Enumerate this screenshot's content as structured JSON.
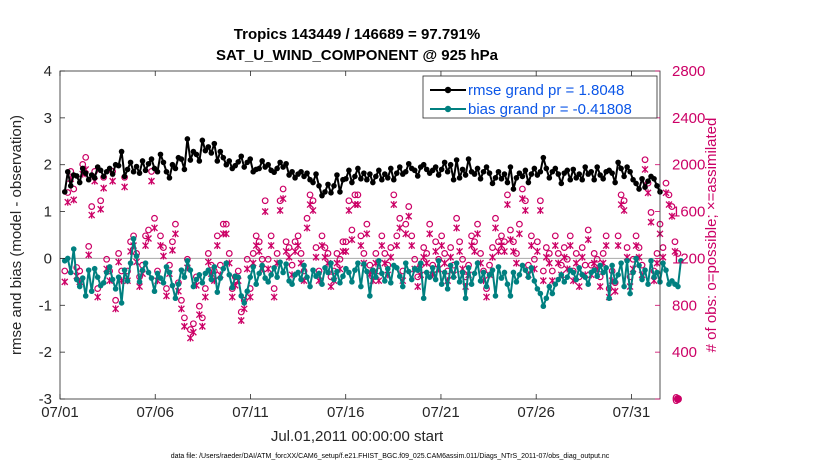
{
  "chart_data": {
    "type": "line",
    "title": "Tropics 143449 / 146689 = 97.791%",
    "subtitle": "SAT_U_WIND_COMPONENT @ 925 hPa",
    "xlabel": "Jul.01,2011 00:00:00 start",
    "ylabel": "rmse and bias (model - observation)",
    "y2label": "# of obs: o=possible; ×=assimilated",
    "footer": "data file: /Users/raeder/DAI/ATM_forcXX/CAM6_setup/f.e21.FHIST_BGC.f09_025.CAM6assim.011/Diags_NTrS_2011-07/obs_diag_output.nc",
    "x_ticks": [
      "07/01",
      "07/06",
      "07/11",
      "07/16",
      "07/21",
      "07/26",
      "07/31"
    ],
    "xlim": [
      0,
      31.5
    ],
    "ylim": [
      -3,
      4
    ],
    "y_ticks": [
      "-3",
      "-2",
      "-1",
      "0",
      "1",
      "2",
      "3",
      "4"
    ],
    "y2lim": [
      0,
      2800
    ],
    "y2_ticks": [
      "0",
      "400",
      "800",
      "1200",
      "1600",
      "2000",
      "2400",
      "2800"
    ],
    "legend": {
      "placement": "top-right",
      "entries": [
        "rmse grand pr = 1.8048",
        "bias grand pr = -0.41808"
      ]
    },
    "colors": {
      "rmse": "#000000",
      "bias": "#008080",
      "obs": "#cc0066",
      "zero_line": "#aaaaaa",
      "legend_text": "#0b56e8"
    },
    "series": [
      {
        "name": "rmse",
        "axis": "left",
        "values": [
          1.42,
          1.85,
          1.55,
          1.78,
          1.76,
          1.62,
          1.92,
          1.82,
          1.68,
          1.78,
          1.72,
          1.95,
          1.88,
          1.75,
          1.85,
          1.92,
          1.8,
          2.0,
          1.98,
          2.28,
          1.75,
          1.9,
          2.05,
          1.85,
          1.96,
          1.82,
          2.08,
          1.88,
          2.02,
          2.12,
          1.92,
          1.85,
          2.22,
          2.05,
          1.85,
          1.72,
          2.0,
          1.92,
          2.15,
          2.12,
          1.9,
          2.55,
          2.1,
          2.28,
          2.22,
          2.08,
          2.52,
          2.3,
          2.38,
          2.25,
          2.45,
          2.08,
          2.28,
          2.15,
          2.0,
          2.08,
          1.92,
          1.98,
          2.06,
          2.18,
          1.95,
          2.05,
          2.12,
          1.85,
          1.9,
          1.92,
          2.08,
          1.95,
          2.0,
          1.88,
          1.84,
          1.92,
          2.05,
          1.95,
          2.02,
          1.78,
          1.85,
          1.72,
          1.8,
          1.85,
          1.75,
          1.82,
          1.68,
          1.62,
          1.8,
          1.55,
          1.34,
          1.42,
          1.58,
          1.4,
          1.55,
          1.78,
          1.42,
          1.68,
          1.7,
          1.88,
          1.62,
          1.75,
          1.92,
          1.7,
          1.82,
          1.68,
          1.8,
          1.62,
          1.75,
          1.88,
          1.68,
          1.8,
          1.72,
          1.92,
          1.68,
          1.82,
          1.95,
          1.8,
          1.85,
          2.02,
          1.92,
          1.88,
          1.76,
          1.95,
          2.0,
          1.9,
          1.82,
          1.88,
          1.95,
          1.78,
          1.9,
          2.05,
          1.85,
          2.0,
          1.68,
          2.1,
          1.72,
          1.9,
          1.78,
          2.12,
          1.85,
          1.8,
          1.92,
          1.7,
          1.85,
          1.95,
          1.82,
          1.6,
          1.72,
          1.85,
          1.7,
          1.8,
          1.62,
          1.95,
          1.48,
          1.72,
          1.82,
          1.75,
          1.88,
          1.62,
          1.8,
          1.92,
          1.78,
          1.85,
          2.15,
          1.92,
          1.72,
          1.85,
          1.92,
          1.8,
          1.6,
          1.82,
          1.88,
          1.68,
          1.9,
          1.72,
          1.8,
          1.68,
          1.95,
          1.8,
          1.85,
          1.68,
          1.95,
          1.78,
          1.7,
          1.85,
          1.88,
          1.82,
          1.62,
          2.05,
          1.92,
          1.75,
          1.95,
          1.85,
          1.68,
          1.6,
          1.48,
          1.7,
          1.52,
          1.65,
          1.75,
          1.7,
          1.55,
          1.42
        ]
      },
      {
        "name": "bias",
        "axis": "left",
        "values": [
          -0.05,
          0.0,
          -0.3,
          0.2,
          -0.45,
          -0.6,
          -0.42,
          -0.8,
          -0.25,
          -0.7,
          -0.22,
          -0.4,
          -0.58,
          -0.52,
          -0.3,
          -0.18,
          -0.45,
          -0.65,
          -0.4,
          -0.95,
          -0.25,
          -0.48,
          -0.1,
          0.42,
          0.05,
          -0.5,
          -0.25,
          -0.1,
          -0.3,
          -0.42,
          -0.7,
          -0.32,
          -0.42,
          -0.52,
          -0.18,
          -0.3,
          -0.58,
          -0.85,
          -0.55,
          -0.25,
          -0.4,
          -0.05,
          -0.25,
          -0.6,
          -0.45,
          -0.35,
          -0.52,
          -0.32,
          -0.25,
          -0.45,
          -0.18,
          -0.72,
          -0.42,
          -0.22,
          -0.1,
          -0.35,
          -0.62,
          -0.38,
          -0.4,
          -0.8,
          -0.95,
          -0.7,
          -0.4,
          -0.18,
          -0.55,
          -0.32,
          -0.15,
          -0.42,
          -0.5,
          -0.35,
          -0.2,
          -0.4,
          -0.08,
          -0.3,
          -0.12,
          -0.48,
          -0.55,
          -0.35,
          -0.3,
          -0.45,
          -0.15,
          -0.4,
          -0.6,
          -0.25,
          -0.38,
          -0.32,
          -0.55,
          -0.2,
          -0.3,
          -0.1,
          -0.45,
          -0.28,
          -0.52,
          -0.38,
          -0.22,
          -0.3,
          -0.5,
          -0.25,
          -0.1,
          -0.6,
          -0.12,
          -0.28,
          -0.8,
          -0.25,
          -0.4,
          -0.05,
          -0.32,
          -0.48,
          -0.22,
          -0.52,
          -0.15,
          -0.2,
          -0.38,
          -0.6,
          -0.1,
          -0.28,
          -0.45,
          -0.22,
          -0.25,
          -0.1,
          -0.85,
          -0.3,
          -0.4,
          -0.2,
          -0.45,
          -0.05,
          -0.55,
          -0.3,
          -0.65,
          -0.15,
          -0.4,
          -0.1,
          -0.5,
          -0.3,
          -0.85,
          -0.2,
          -0.55,
          -0.32,
          -0.1,
          -0.48,
          -0.3,
          -0.6,
          -0.35,
          -0.25,
          -0.8,
          -0.18,
          -0.42,
          -0.3,
          -0.55,
          -0.8,
          -0.3,
          -0.5,
          -0.35,
          -0.15,
          -0.25,
          -0.4,
          -0.2,
          -0.48,
          -0.65,
          -0.75,
          -1.02,
          -0.85,
          -0.6,
          -0.75,
          -0.55,
          -0.45,
          -0.35,
          -0.5,
          -0.4,
          -0.25,
          -0.3,
          -0.45,
          -0.2,
          -0.35,
          -0.4,
          -0.55,
          -0.3,
          -0.25,
          -0.38,
          -0.15,
          -0.3,
          -0.2,
          -0.85,
          -0.15,
          -0.5,
          -0.35,
          -0.1,
          -0.6,
          -0.05,
          -0.75,
          -0.3,
          0.0,
          -0.15,
          -0.45,
          -0.25,
          -0.55,
          -0.05,
          -0.4,
          -0.3,
          -0.5,
          -0.1,
          -0.25,
          -0.55,
          -0.48,
          -0.55,
          -0.6,
          -0.05
        ]
      },
      {
        "name": "obs possible (o)",
        "axis": "right",
        "values": [
          1050,
          1720,
          1900,
          1750,
          1080,
          1050,
          1960,
          2020,
          1260,
          1600,
          1900,
          900,
          1650,
          1850,
          1150,
          1050,
          1900,
          800,
          1200,
          1050,
          1850,
          1050,
          1300,
          1350,
          1200,
          1000,
          1100,
          1350,
          1400,
          1900,
          1500,
          1050,
          1350,
          1250,
          900,
          1100,
          1300,
          1450,
          950,
          800,
          650,
          1150,
          550,
          600,
          1000,
          750,
          650,
          900,
          1200,
          1100,
          1050,
          1350,
          1100,
          1450,
          1450,
          1200,
          900,
          1000,
          1050,
          700,
          800,
          1150,
          900,
          1200,
          1350,
          1300,
          1150,
          1650,
          1150,
          1350,
          900,
          1200,
          1650,
          1750,
          1300,
          1250,
          1100,
          1300,
          1350,
          1200,
          1050,
          1500,
          1700,
          1650,
          1250,
          1050,
          1350,
          1250,
          1200,
          1000,
          1050,
          1200,
          1150,
          1300,
          1300,
          1650,
          1400,
          1700,
          1700,
          1350,
          1200,
          1450,
          1100,
          1050,
          1200,
          1050,
          1350,
          1200,
          1100,
          1250,
          1700,
          1350,
          1500,
          1050,
          1450,
          1600,
          1350,
          1150,
          1000,
          1100,
          1250,
          1200,
          1450,
          1100,
          1300,
          1150,
          1350,
          1200,
          1050,
          1250,
          1100,
          1500,
          1300,
          1150,
          1000,
          1100,
          1350,
          1300,
          1450,
          1200,
          1050,
          900,
          1100,
          1250,
          1500,
          1300,
          1350,
          1300,
          1700,
          1400,
          1300,
          1200,
          1450,
          1750,
          1650,
          1100,
          1350,
          1150,
          1300,
          1650,
          1050,
          1250,
          1200,
          1050,
          1350,
          1200,
          1100,
          1250,
          1150,
          1350,
          1050,
          1200,
          1000,
          1250,
          1100,
          1400,
          1100,
          1200,
          1150,
          1000,
          1200,
          1350,
          900,
          1050,
          950,
          1350,
          1700,
          1650,
          1250,
          1000,
          1150,
          1350,
          1250,
          1100,
          2000,
          1800,
          1550,
          1050,
          1200,
          1450,
          1250,
          1800,
          1700,
          1600,
          1300,
          1200
        ]
      },
      {
        "name": "obs assimilated (×)",
        "axis": "right",
        "values": [
          1000,
          1680,
          1880,
          1700,
          1050,
          1000,
          1920,
          1960,
          1230,
          1570,
          1860,
          870,
          1620,
          1800,
          1110,
          1010,
          1860,
          770,
          1170,
          1010,
          1810,
          1010,
          1260,
          1310,
          1170,
          960,
          1070,
          1310,
          1370,
          1860,
          1460,
          1010,
          1310,
          1220,
          880,
          1070,
          1270,
          1410,
          920,
          770,
          620,
          1120,
          520,
          570,
          970,
          720,
          620,
          870,
          1170,
          1070,
          1010,
          1310,
          1060,
          1410,
          1410,
          1160,
          870,
          970,
          1010,
          670,
          770,
          1110,
          870,
          1160,
          1310,
          1260,
          1110,
          1600,
          1110,
          1310,
          870,
          1160,
          1610,
          1710,
          1260,
          1210,
          1060,
          1260,
          1310,
          1160,
          1010,
          1460,
          1660,
          1610,
          1210,
          1010,
          1310,
          1210,
          1160,
          960,
          1010,
          1160,
          1110,
          1260,
          1260,
          1610,
          1360,
          1660,
          1660,
          1310,
          1160,
          1410,
          1060,
          1010,
          1160,
          1010,
          1310,
          1160,
          1060,
          1210,
          1660,
          1310,
          1460,
          1010,
          1410,
          1560,
          1310,
          1110,
          960,
          1060,
          1210,
          1160,
          1410,
          1060,
          1260,
          1110,
          1310,
          1160,
          1010,
          1210,
          1060,
          1460,
          1260,
          1110,
          960,
          1060,
          1310,
          1260,
          1410,
          1160,
          1010,
          870,
          1060,
          1210,
          1460,
          1260,
          1310,
          1260,
          1660,
          1360,
          1260,
          1160,
          1410,
          1710,
          1610,
          1060,
          1310,
          1110,
          1260,
          1610,
          1010,
          1210,
          1160,
          1010,
          1310,
          1160,
          1060,
          1210,
          1110,
          1310,
          1010,
          1160,
          960,
          1210,
          1060,
          1360,
          1060,
          1160,
          1110,
          960,
          1160,
          1310,
          870,
          1010,
          920,
          1310,
          1660,
          1610,
          1210,
          960,
          1110,
          1310,
          1210,
          1060,
          1960,
          1760,
          1510,
          1010,
          1160,
          1410,
          1210,
          1760,
          1660,
          1560,
          1260,
          0
        ]
      }
    ]
  }
}
